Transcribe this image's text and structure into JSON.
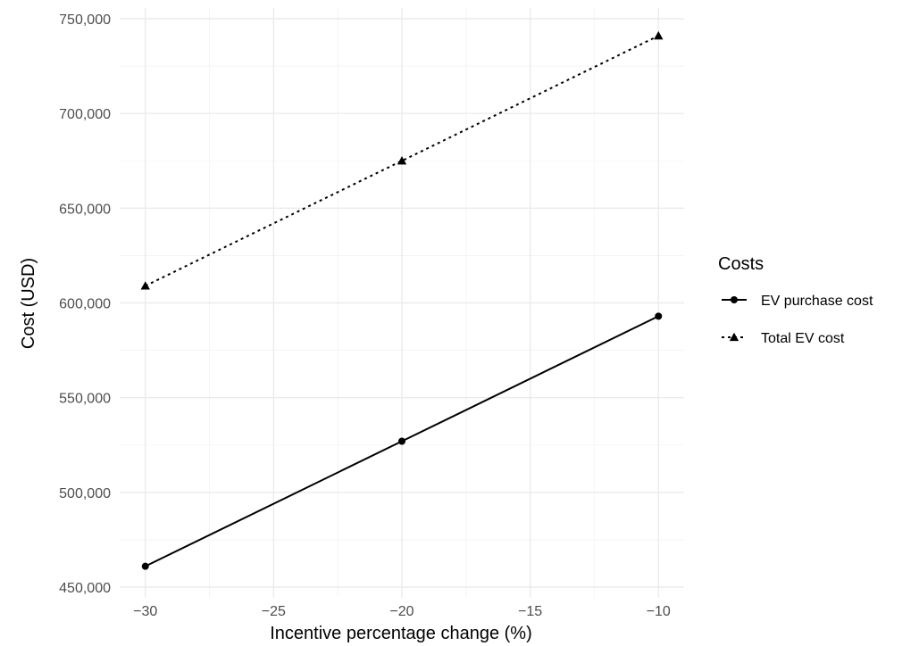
{
  "chart_data": {
    "type": "line",
    "title": "",
    "xlabel": "Incentive percentage change (%)",
    "ylabel": "Cost (USD)",
    "xlim": [
      -31,
      -9
    ],
    "ylim": [
      450000,
      750000
    ],
    "x_ticks": [
      -30,
      -25,
      -20,
      -15,
      -10
    ],
    "x_tick_labels": [
      "−30",
      "−25",
      "−20",
      "−15",
      "−10"
    ],
    "y_ticks": [
      450000,
      500000,
      550000,
      600000,
      650000,
      700000,
      750000
    ],
    "y_tick_labels": [
      "450,000",
      "500,000",
      "550,000",
      "600,000",
      "650,000",
      "700,000",
      "750,000"
    ],
    "grid": true,
    "legend": {
      "title": "Costs",
      "position": "right"
    },
    "series": [
      {
        "name": "EV purchase cost",
        "x": [
          -30,
          -20,
          -10
        ],
        "values": [
          461000,
          527000,
          593000
        ],
        "color": "#000000",
        "line": "solid",
        "marker": "circle"
      },
      {
        "name": "Total EV cost",
        "x": [
          -30,
          -20,
          -10
        ],
        "values": [
          609000,
          675000,
          741000
        ],
        "color": "#000000",
        "line": "dotted",
        "marker": "triangle"
      }
    ]
  }
}
